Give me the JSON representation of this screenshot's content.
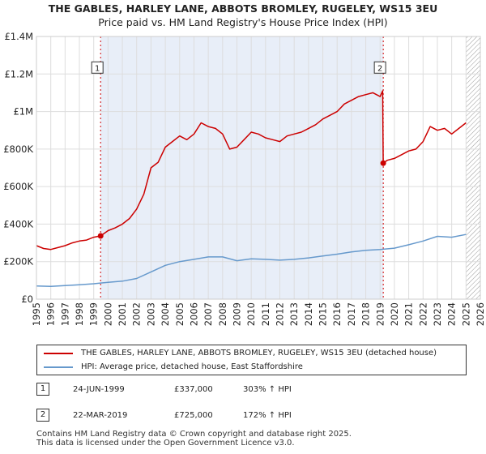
{
  "title_line1": "THE GABLES, HARLEY LANE, ABBOTS BROMLEY, RUGELEY, WS15 3EU",
  "title_line2": "Price paid vs. HM Land Registry's House Price Index (HPI)",
  "colors": {
    "property": "#cc0000",
    "hpi": "#6699cc",
    "shade": "#e8eef8",
    "grid": "#dddddd",
    "marker": "#cc0000"
  },
  "chart_data": {
    "type": "line",
    "title": "THE GABLES, HARLEY LANE, ABBOTS BROMLEY, RUGELEY, WS15 3EU — Price paid vs. HM Land Registry's House Price Index (HPI)",
    "xlabel": "",
    "ylabel": "",
    "xlim": [
      1995.0,
      2026.0
    ],
    "ylim": [
      0,
      1400000
    ],
    "y_ticks": [
      0,
      200000,
      400000,
      600000,
      800000,
      1000000,
      1200000,
      1400000
    ],
    "y_tick_labels": [
      "£0",
      "£200K",
      "£400K",
      "£600K",
      "£800K",
      "£1M",
      "£1.2M",
      "£1.4M"
    ],
    "x_ticks": [
      1995,
      1996,
      1997,
      1998,
      1999,
      2000,
      2001,
      2002,
      2003,
      2004,
      2005,
      2006,
      2007,
      2008,
      2009,
      2010,
      2011,
      2012,
      2013,
      2014,
      2015,
      2016,
      2017,
      2018,
      2019,
      2020,
      2021,
      2022,
      2023,
      2024,
      2025,
      2026
    ],
    "x_tick_labels": [
      "1995",
      "1996",
      "1997",
      "1998",
      "1999",
      "2000",
      "2001",
      "2002",
      "2003",
      "2004",
      "2005",
      "2006",
      "2007",
      "2008",
      "2009",
      "2010",
      "2011",
      "2012",
      "2013",
      "2014",
      "2015",
      "2016",
      "2017",
      "2018",
      "2019",
      "2020",
      "2021",
      "2022",
      "2023",
      "2024",
      "2025",
      "2026"
    ],
    "shaded_range": [
      1999.48,
      2019.22
    ],
    "hatched_from": 2025.0,
    "series": [
      {
        "name": "THE GABLES, HARLEY LANE, ABBOTS BROMLEY, RUGELEY, WS15 3EU (detached house)",
        "x": [
          1995.0,
          1995.5,
          1996.0,
          1996.5,
          1997.0,
          1997.5,
          1998.0,
          1998.5,
          1999.0,
          1999.48,
          2000.0,
          2000.5,
          2001.0,
          2001.5,
          2002.0,
          2002.5,
          2003.0,
          2003.5,
          2004.0,
          2004.5,
          2005.0,
          2005.5,
          2006.0,
          2006.5,
          2007.0,
          2007.5,
          2008.0,
          2008.5,
          2009.0,
          2009.5,
          2010.0,
          2010.5,
          2011.0,
          2011.5,
          2012.0,
          2012.5,
          2013.0,
          2013.5,
          2014.0,
          2014.5,
          2015.0,
          2015.5,
          2016.0,
          2016.5,
          2017.0,
          2017.5,
          2018.0,
          2018.5,
          2019.0,
          2019.18,
          2019.22,
          2019.5,
          2020.0,
          2020.5,
          2021.0,
          2021.5,
          2022.0,
          2022.5,
          2023.0,
          2023.5,
          2024.0,
          2024.5,
          2025.0
        ],
        "values": [
          285000,
          270000,
          265000,
          275000,
          285000,
          300000,
          310000,
          315000,
          330000,
          337000,
          365000,
          380000,
          400000,
          430000,
          480000,
          560000,
          700000,
          730000,
          810000,
          840000,
          870000,
          850000,
          880000,
          940000,
          920000,
          910000,
          880000,
          800000,
          810000,
          850000,
          890000,
          880000,
          860000,
          850000,
          840000,
          870000,
          880000,
          890000,
          910000,
          930000,
          960000,
          980000,
          1000000,
          1040000,
          1060000,
          1080000,
          1090000,
          1100000,
          1080000,
          1110000,
          725000,
          740000,
          750000,
          770000,
          790000,
          800000,
          840000,
          920000,
          900000,
          910000,
          880000,
          910000,
          940000
        ]
      },
      {
        "name": "HPI: Average price, detached house, East Staffordshire",
        "x": [
          1995.0,
          1996.0,
          1997.0,
          1998.0,
          1999.0,
          2000.0,
          2001.0,
          2002.0,
          2003.0,
          2004.0,
          2005.0,
          2006.0,
          2007.0,
          2008.0,
          2009.0,
          2010.0,
          2011.0,
          2012.0,
          2013.0,
          2014.0,
          2015.0,
          2016.0,
          2017.0,
          2018.0,
          2019.0,
          2020.0,
          2021.0,
          2022.0,
          2023.0,
          2024.0,
          2025.0
        ],
        "values": [
          70000,
          68000,
          72000,
          77000,
          82000,
          90000,
          96000,
          110000,
          145000,
          180000,
          200000,
          212000,
          225000,
          225000,
          205000,
          215000,
          212000,
          208000,
          212000,
          220000,
          230000,
          240000,
          252000,
          260000,
          265000,
          272000,
          290000,
          310000,
          335000,
          330000,
          345000
        ]
      }
    ],
    "annotations": [
      {
        "id": "1",
        "x": 1999.48,
        "y": 337000
      },
      {
        "id": "2",
        "x": 2019.22,
        "y": 725000
      }
    ]
  },
  "legend": {
    "property_label": "THE GABLES, HARLEY LANE, ABBOTS BROMLEY, RUGELEY, WS15 3EU (detached house)",
    "hpi_label": "HPI: Average price, detached house, East Staffordshire"
  },
  "sales": [
    {
      "id": "1",
      "date": "24-JUN-1999",
      "price": "£337,000",
      "hpi": "303% ↑ HPI"
    },
    {
      "id": "2",
      "date": "22-MAR-2019",
      "price": "£725,000",
      "hpi": "172% ↑ HPI"
    }
  ],
  "footer_line1": "Contains HM Land Registry data © Crown copyright and database right 2025.",
  "footer_line2": "This data is licensed under the Open Government Licence v3.0."
}
